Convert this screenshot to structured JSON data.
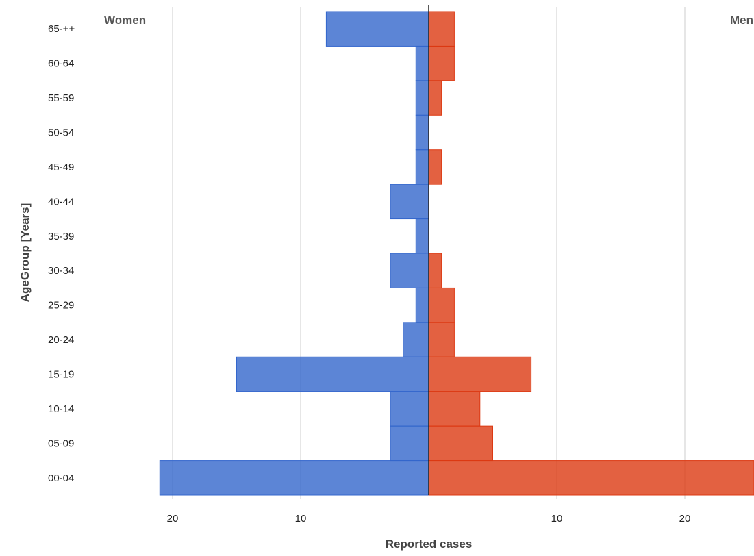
{
  "chart_data": {
    "type": "bar",
    "orientation": "horizontal-population-pyramid",
    "categories": [
      "00-04",
      "05-09",
      "10-14",
      "15-19",
      "20-24",
      "25-29",
      "30-34",
      "35-39",
      "40-44",
      "45-49",
      "50-54",
      "55-59",
      "60-64",
      "65-++"
    ],
    "series": [
      {
        "name": "Women",
        "color": "#3366cc",
        "values": [
          21,
          3,
          3,
          15,
          2,
          1,
          3,
          1,
          3,
          1,
          1,
          1,
          1,
          8
        ]
      },
      {
        "name": "Men",
        "color": "#dc3912",
        "values": [
          26,
          5,
          4,
          8,
          2,
          2,
          1,
          0,
          0,
          1,
          0,
          1,
          2,
          2
        ]
      }
    ],
    "xlabel": "Reported cases",
    "ylabel": "AgeGroup [Years]",
    "xlim": [
      -20,
      26
    ],
    "x_ticks": [
      {
        "value": -20,
        "label": "20"
      },
      {
        "value": -10,
        "label": "10"
      },
      {
        "value": 10,
        "label": "10"
      },
      {
        "value": 20,
        "label": "20"
      }
    ],
    "grid": true,
    "legend": "none"
  }
}
